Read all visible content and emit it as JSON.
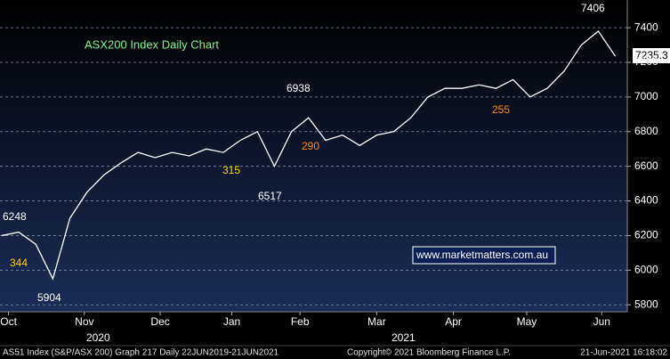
{
  "chart_data": {
    "type": "line",
    "title": "ASX200 Index Daily Chart",
    "values": [
      6200,
      6220,
      6150,
      5950,
      6300,
      6450,
      6550,
      6620,
      6680,
      6650,
      6680,
      6660,
      6700,
      6680,
      6750,
      6800,
      6600,
      6800,
      6880,
      6750,
      6780,
      6720,
      6780,
      6800,
      6880,
      7000,
      7050,
      7050,
      7070,
      7050,
      7100,
      7000,
      7050,
      7150,
      7300,
      7380,
      7235
    ],
    "color": "#ffffff",
    "xlim": [
      -0.1,
      36.7
    ],
    "xticks": [
      {
        "value": 0.4,
        "label": "Oct"
      },
      {
        "value": 4.85,
        "label": "Nov"
      },
      {
        "value": 9.3,
        "label": "Dec"
      },
      {
        "value": 13.5,
        "label": "Jan"
      },
      {
        "value": 17.5,
        "label": "Feb"
      },
      {
        "value": 22.0,
        "label": "Mar"
      },
      {
        "value": 26.5,
        "label": "Apr"
      },
      {
        "value": 30.8,
        "label": "May"
      },
      {
        "value": 35.2,
        "label": "Jun"
      }
    ],
    "years": [
      "2020",
      "2021"
    ],
    "ylim": [
      5760,
      7560
    ],
    "yticks": [
      5800,
      6000,
      6200,
      6400,
      6600,
      6800,
      7000,
      7200,
      7400
    ],
    "grid": true,
    "annotations": [
      "7406",
      "6938",
      "6517",
      "6248",
      "5904",
      "344",
      "315",
      "290",
      "255",
      "7235.3",
      "www.marketmatters.com.au"
    ],
    "footer": [
      "AS51 Index (S&P/ASX 200) Graph 217  Daily 22JUN2019-21JUN2021",
      "Copyright© 2021 Bloomberg Finance L.P.",
      "21-Jun-2021 16:18:02"
    ]
  }
}
